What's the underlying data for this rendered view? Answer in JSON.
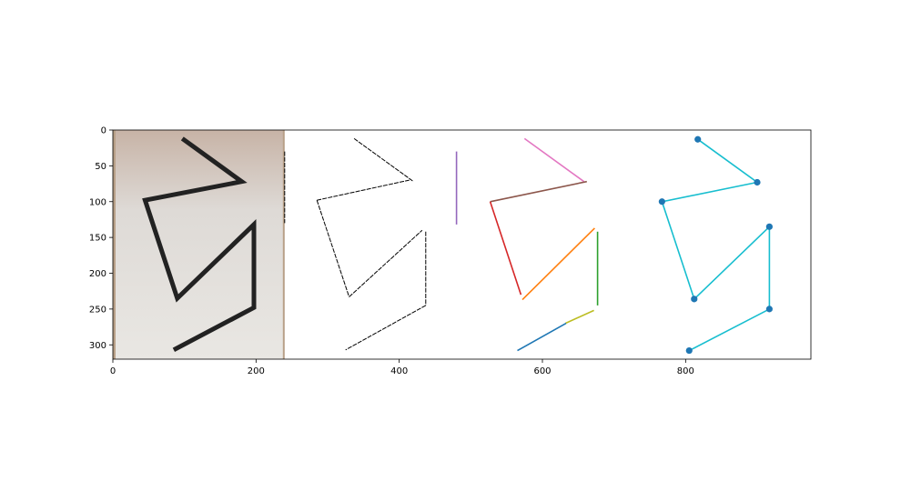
{
  "chart_data": {
    "type": "scatter",
    "title": "",
    "xlabel": "",
    "ylabel": "",
    "xlim": [
      0,
      975
    ],
    "ylim": [
      320,
      0
    ],
    "x_ticks": [
      "0",
      "200",
      "400",
      "600",
      "800"
    ],
    "x_tick_values": [
      0,
      200,
      400,
      600,
      800
    ],
    "y_ticks": [
      "0",
      "50",
      "100",
      "150",
      "200",
      "250",
      "300"
    ],
    "y_tick_values": [
      0,
      50,
      100,
      150,
      200,
      250,
      300
    ],
    "photo_panel": {
      "extent_x": [
        0,
        240
      ],
      "paper_color": "#e6e3df",
      "board_color": "#b8a088",
      "marker_color": "#222222",
      "drawn_polyline": [
        [
          97,
          12
        ],
        [
          180,
          72
        ],
        [
          45,
          98
        ],
        [
          90,
          235
        ],
        [
          197,
          132
        ],
        [
          197,
          248
        ],
        [
          85,
          307
        ]
      ]
    },
    "edge_panel": {
      "color": "#000000",
      "segments": [
        [
          [
            337,
            12
          ],
          [
            420,
            72
          ]
        ],
        [
          [
            285,
            98
          ],
          [
            414,
            70
          ]
        ],
        [
          [
            285,
            98
          ],
          [
            330,
            233
          ]
        ],
        [
          [
            330,
            233
          ],
          [
            432,
            140
          ]
        ],
        [
          [
            437,
            142
          ],
          [
            437,
            245
          ]
        ],
        [
          [
            437,
            245
          ],
          [
            325,
            307
          ]
        ],
        [
          [
            240,
            30
          ],
          [
            240,
            130
          ]
        ]
      ]
    },
    "line_segments_panel": {
      "segments": [
        {
          "color": "#9467bd",
          "points": [
            [
              480,
              30
            ],
            [
              480,
              132
            ]
          ]
        },
        {
          "color": "#e377c2",
          "points": [
            [
              575,
              12
            ],
            [
              658,
              72
            ]
          ]
        },
        {
          "color": "#8c564b",
          "points": [
            [
              527,
              100
            ],
            [
              662,
              72
            ]
          ]
        },
        {
          "color": "#d62728",
          "points": [
            [
              527,
              100
            ],
            [
              570,
              230
            ]
          ]
        },
        {
          "color": "#ff7f0e",
          "points": [
            [
              572,
              237
            ],
            [
              673,
              137
            ]
          ]
        },
        {
          "color": "#2ca02c",
          "points": [
            [
              677,
              142
            ],
            [
              677,
              245
            ]
          ]
        },
        {
          "color": "#bcbd22",
          "points": [
            [
              632,
              270
            ],
            [
              672,
              252
            ]
          ]
        },
        {
          "color": "#1f77b4",
          "points": [
            [
              565,
              308
            ],
            [
              633,
              270
            ]
          ]
        }
      ]
    },
    "polyline_panel": {
      "line_color": "#17becf",
      "marker_color": "#1f77b4",
      "points": [
        [
          817,
          13
        ],
        [
          900,
          73
        ],
        [
          767,
          100
        ],
        [
          812,
          236
        ],
        [
          917,
          135
        ],
        [
          917,
          250
        ],
        [
          805,
          308
        ]
      ]
    }
  }
}
